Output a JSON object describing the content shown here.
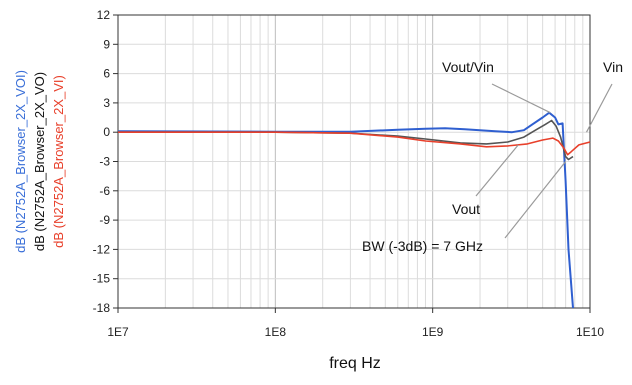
{
  "chart_data": {
    "type": "line",
    "xlabel": "freq Hz",
    "x_scale": "log",
    "xlim": [
      10000000,
      10000000000
    ],
    "ylim": [
      -18,
      12
    ],
    "grid": true,
    "x_ticks": [
      {
        "value": 10000000,
        "label": "1E7"
      },
      {
        "value": 100000000,
        "label": "1E8"
      },
      {
        "value": 1000000000,
        "label": "1E9"
      },
      {
        "value": 10000000000,
        "label": "1E10"
      }
    ],
    "y_ticks": [
      12,
      9,
      6,
      3,
      0,
      -3,
      -6,
      -9,
      -12,
      -15,
      -18
    ],
    "ylabels": [
      {
        "text": "dB (N2752A_Browser_2X_VOI)",
        "color": "#3a6fd8"
      },
      {
        "text": "dB (N2752A_Browser_2X_VO)",
        "color": "#111111"
      },
      {
        "text": "dB (N2752A_Browser_2X_VI)",
        "color": "#e8402b"
      }
    ],
    "series": [
      {
        "color": "#2f5fd0",
        "points": [
          [
            10000000,
            0.1
          ],
          [
            100000000,
            0.05
          ],
          [
            300000000,
            0.05
          ],
          [
            600000000,
            0.25
          ],
          [
            900000000,
            0.35
          ],
          [
            1200000000,
            0.4
          ],
          [
            1600000000,
            0.3
          ],
          [
            2000000000,
            0.2
          ],
          [
            2500000000,
            0.1
          ],
          [
            3200000000,
            0.0
          ],
          [
            3800000000,
            0.2
          ],
          [
            4300000000,
            0.8
          ],
          [
            5000000000,
            1.5
          ],
          [
            5500000000,
            2.0
          ],
          [
            6000000000,
            1.5
          ],
          [
            6300000000,
            0.8
          ],
          [
            6700000000,
            0.9
          ],
          [
            7000000000,
            -5.0
          ],
          [
            7300000000,
            -12.0
          ],
          [
            7800000000,
            -18.0
          ]
        ]
      },
      {
        "color": "#555555",
        "points": [
          [
            10000000,
            0.0
          ],
          [
            100000000,
            0.0
          ],
          [
            300000000,
            -0.1
          ],
          [
            600000000,
            -0.4
          ],
          [
            900000000,
            -0.7
          ],
          [
            1500000000,
            -1.1
          ],
          [
            2200000000,
            -1.2
          ],
          [
            3000000000,
            -1.0
          ],
          [
            3800000000,
            -0.5
          ],
          [
            4500000000,
            0.2
          ],
          [
            5200000000,
            0.8
          ],
          [
            5700000000,
            1.2
          ],
          [
            6100000000,
            0.6
          ],
          [
            6500000000,
            -0.5
          ],
          [
            7000000000,
            -2.5
          ],
          [
            7300000000,
            -2.8
          ],
          [
            7800000000,
            -2.5
          ]
        ]
      },
      {
        "color": "#e8402b",
        "points": [
          [
            10000000,
            0.0
          ],
          [
            100000000,
            0.0
          ],
          [
            300000000,
            -0.1
          ],
          [
            600000000,
            -0.5
          ],
          [
            900000000,
            -0.9
          ],
          [
            1500000000,
            -1.2
          ],
          [
            2200000000,
            -1.5
          ],
          [
            3000000000,
            -1.4
          ],
          [
            4000000000,
            -1.2
          ],
          [
            5000000000,
            -0.8
          ],
          [
            5800000000,
            -0.6
          ],
          [
            6300000000,
            -0.9
          ],
          [
            6800000000,
            -1.6
          ],
          [
            7200000000,
            -2.3
          ],
          [
            7600000000,
            -2.0
          ],
          [
            8500000000,
            -1.3
          ],
          [
            10000000000,
            -1.0
          ]
        ]
      }
    ],
    "annotations": [
      {
        "text": "Vout/Vin",
        "target": [
          5600000000,
          2.0
        ]
      },
      {
        "text": "Vin",
        "target": [
          9500000000,
          0.0
        ]
      },
      {
        "text": "Vout",
        "target": [
          3500000000,
          -1.3
        ]
      },
      {
        "text": "BW (-3dB) = 7 GHz",
        "target": [
          7000000000,
          -3.0
        ]
      }
    ]
  }
}
